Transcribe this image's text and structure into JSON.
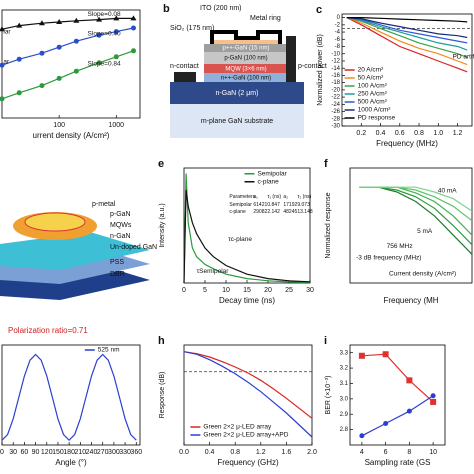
{
  "chart_data": [
    {
      "type": "line",
      "xlog": true,
      "xlabel": "urrent density (A/cm²)",
      "xlim": [
        10,
        2600
      ],
      "ylim": [
        0,
        9
      ],
      "xticks": [
        100,
        1000
      ],
      "annotations": [
        "Slope=0.08",
        "Slope=0.40",
        "Slope=0.84",
        "lar",
        "ar"
      ],
      "x": [
        10,
        20,
        50,
        100,
        200,
        500,
        1000,
        2000
      ],
      "series": [
        {
          "color": "#111111",
          "marker": "triangle",
          "values": [
            7.4,
            7.7,
            7.9,
            8.0,
            8.1,
            8.2,
            8.3,
            8.3
          ]
        },
        {
          "color": "#2b4fc7",
          "marker": "circle",
          "values": [
            4.4,
            4.9,
            5.4,
            5.9,
            6.4,
            6.9,
            7.2,
            7.5
          ]
        },
        {
          "color": "#2a9a3a",
          "marker": "circle",
          "values": [
            1.6,
            2.1,
            2.7,
            3.3,
            3.9,
            4.6,
            5.1,
            5.6
          ]
        }
      ]
    },
    {
      "type": "line",
      "panel": "c",
      "xlabel": "Frequency (MHz)",
      "ylabel": "Normalized power (dB)",
      "xlim": [
        0,
        1.35
      ],
      "ylim": [
        -30,
        1
      ],
      "hline": -3,
      "xticks": [
        0.2,
        0.4,
        0.6,
        0.8,
        {
          "value": 1,
          "label": "1.0"
        },
        1.2
      ],
      "yticks": [
        0,
        -2,
        -4,
        -6,
        -8,
        -10,
        -12,
        -14,
        -16,
        -18,
        -20,
        -22,
        -24,
        -26,
        -28,
        -30
      ],
      "annotations": [
        "PD artifa"
      ],
      "x": [
        0.05,
        0.2,
        0.4,
        0.6,
        0.8,
        1.0,
        1.2,
        1.3
      ],
      "series": [
        {
          "name": "20 A/cm²",
          "color": "#e02020",
          "values": [
            0,
            -2,
            -5,
            -8,
            -10,
            -12,
            -14,
            -15
          ]
        },
        {
          "name": "50 A/cm²",
          "color": "#f08a1c",
          "values": [
            0,
            -1.5,
            -4,
            -6.5,
            -8.5,
            -10,
            -12,
            -13
          ]
        },
        {
          "name": "100 A/cm²",
          "color": "#3aa24a",
          "values": [
            0,
            -1,
            -3,
            -5,
            -7,
            -8.5,
            -10,
            -11
          ]
        },
        {
          "name": "250 A/cm²",
          "color": "#1d9e9a",
          "values": [
            0,
            -0.8,
            -2.5,
            -4,
            -5.5,
            -7,
            -8,
            -9
          ]
        },
        {
          "name": "500 A/cm²",
          "color": "#2a5bd7",
          "values": [
            0,
            -0.5,
            -2,
            -3.5,
            -4.5,
            -5.5,
            -6.5,
            -7
          ]
        },
        {
          "name": "1000 A/cm²",
          "color": "#1b2a78",
          "values": [
            0,
            -0.3,
            -1.5,
            -2.5,
            -3.5,
            -4.5,
            -5,
            -5.5
          ]
        },
        {
          "name": "PD response",
          "color": "#000000",
          "values": [
            0,
            0,
            -0.2,
            -0.4,
            -0.6,
            -0.8,
            -1,
            -1.2
          ]
        }
      ]
    },
    {
      "type": "line",
      "panel": "e",
      "xlabel": "Decay time (ns)",
      "ylabel": "Intensity (a.u.)",
      "xlim": [
        0,
        30
      ],
      "ylim": [
        0,
        1.05
      ],
      "xticks": [
        0,
        5,
        10,
        15,
        20,
        25,
        30
      ],
      "annotations": [
        "τc-plane",
        "τSemipolar"
      ],
      "table": {
        "header": [
          "Parameters",
          "a₁",
          "τ₁ (ns)",
          "a₂",
          "τ₂ (ns)"
        ],
        "rows": [
          [
            "Semipolar",
            "61421",
            "0.847",
            "17192",
            "9.073"
          ],
          [
            "c-plane",
            "29082",
            "2.142",
            "48245",
            "13.148"
          ]
        ]
      },
      "x": [
        0,
        0.5,
        1,
        2,
        3,
        5,
        7,
        10,
        15,
        20,
        25,
        30
      ],
      "series": [
        {
          "name": "Semipolar",
          "color": "#2a9a3a",
          "values": [
            0,
            1,
            0.55,
            0.32,
            0.24,
            0.17,
            0.13,
            0.08,
            0.04,
            0.02,
            0.01,
            0.005
          ]
        },
        {
          "name": "c-plane",
          "color": "#111111",
          "values": [
            0,
            0.85,
            0.7,
            0.55,
            0.45,
            0.32,
            0.24,
            0.16,
            0.08,
            0.04,
            0.02,
            0.01
          ]
        }
      ]
    },
    {
      "type": "line",
      "panel": "f",
      "xlabel": "Frequency (MH",
      "ylabel": "Normalized response",
      "xlim": [
        0.5,
        7
      ],
      "ylim": [
        -10,
        2
      ],
      "annotations": [
        "40 mA",
        "5 mA",
        "756 MHz",
        "Current density (A/cm²)",
        "-3 dB frequency (MHz)"
      ],
      "x": [
        1,
        2,
        3,
        4,
        5,
        6,
        7
      ],
      "series": [
        {
          "color": "#1f7a2e",
          "values": [
            0,
            0,
            -0.5,
            -1.5,
            -3,
            -5,
            -7
          ]
        },
        {
          "color": "#2a9a3a",
          "values": [
            0,
            0,
            -0.3,
            -1,
            -2.2,
            -4,
            -6
          ]
        },
        {
          "color": "#3fb34f",
          "values": [
            0,
            0,
            0,
            -0.6,
            -1.5,
            -3,
            -5
          ]
        },
        {
          "color": "#5cc46a",
          "values": [
            0,
            0,
            0,
            -0.3,
            -1,
            -2,
            -3.5
          ]
        },
        {
          "color": "#7fd38a",
          "values": [
            0,
            0,
            0,
            0,
            -0.5,
            -1.2,
            -2.5
          ]
        }
      ]
    },
    {
      "type": "line",
      "title": "Polarization ratio=0.71",
      "xlabel": "Angle (°)",
      "xlim": [
        0,
        370
      ],
      "ylim": [
        0,
        1.05
      ],
      "xticks": [
        0,
        30,
        60,
        90,
        120,
        150,
        180,
        210,
        240,
        270,
        300,
        330,
        360
      ],
      "x": [
        0,
        15,
        30,
        45,
        60,
        75,
        90,
        105,
        120,
        135,
        150,
        165,
        180,
        195,
        210,
        225,
        240,
        255,
        270,
        285,
        300,
        315,
        330,
        345,
        360
      ],
      "series": [
        {
          "name": "525 nm",
          "color": "#2b3fd0",
          "values": [
            0.05,
            0.11,
            0.275,
            0.5,
            0.725,
            0.89,
            0.95,
            0.89,
            0.725,
            0.5,
            0.275,
            0.11,
            0.05,
            0.11,
            0.275,
            0.5,
            0.725,
            0.89,
            0.95,
            0.89,
            0.725,
            0.5,
            0.275,
            0.11,
            0.05
          ]
        }
      ]
    },
    {
      "type": "line",
      "panel": "h",
      "xlabel": "Frequency (GHz)",
      "ylabel": "Response (dB)",
      "xlim": [
        0,
        2
      ],
      "ylim": [
        -14,
        1
      ],
      "hline": -3,
      "xticks": [
        {
          "value": 0,
          "label": "0.0"
        },
        0.4,
        0.8,
        1.2,
        1.6,
        {
          "value": 2,
          "label": "2.0"
        }
      ],
      "x": [
        0,
        0.2,
        0.4,
        0.6,
        0.8,
        1.0,
        1.2,
        1.4,
        1.6,
        1.8,
        2.0
      ],
      "series": [
        {
          "name": "Green 2×2 μ-LED array",
          "color": "#e02020",
          "values": [
            0,
            -0.3,
            -0.8,
            -1.5,
            -2.3,
            -3.2,
            -4.3,
            -5.6,
            -7,
            -8.5,
            -10
          ]
        },
        {
          "name": "Green 2×2 μ-LED array+APD",
          "color": "#2b3fd0",
          "values": [
            0,
            -0.4,
            -1.2,
            -2.2,
            -3.3,
            -4.6,
            -6,
            -7.6,
            -9.2,
            -11,
            -12.8
          ]
        }
      ]
    },
    {
      "type": "line",
      "panel": "i",
      "xlabel": "Sampling rate (GS",
      "ylabel": "BER (×10⁻³)",
      "xlim": [
        3,
        11
      ],
      "ylim": [
        2.7,
        3.35
      ],
      "xticks": [
        4,
        6,
        8,
        10
      ],
      "yticks": [
        2.8,
        2.9,
        {
          "value": 3,
          "label": "3.0"
        },
        3.1,
        3.2,
        3.3
      ],
      "x": [
        4,
        6,
        8,
        10
      ],
      "series": [
        {
          "color": "#e03030",
          "marker": "square",
          "values": [
            3.28,
            3.29,
            3.12,
            2.98
          ]
        },
        {
          "color": "#2b3fd0",
          "marker": "circle",
          "values": [
            2.76,
            2.84,
            2.92,
            3.02
          ]
        }
      ]
    }
  ],
  "diagram_b": {
    "panel": "b",
    "labels": [
      "ITO (200 nm)",
      "Metal ring",
      "SiO₂ (175 nm)",
      "p++-GaN (15 nm)",
      "p-GaN (100 nm)",
      "MQW (3×6 nm)",
      "n++-GaN (100 nm)",
      "n-contact",
      "p-contact",
      "n-GaN (2 μm)",
      "m-plane GaN substrate"
    ]
  },
  "diagram_d": {
    "labels": [
      "p-metal",
      "p-GaN",
      "MQWs",
      "n-GaN",
      "Un-doped GaN",
      "PSS",
      "DBR"
    ]
  }
}
